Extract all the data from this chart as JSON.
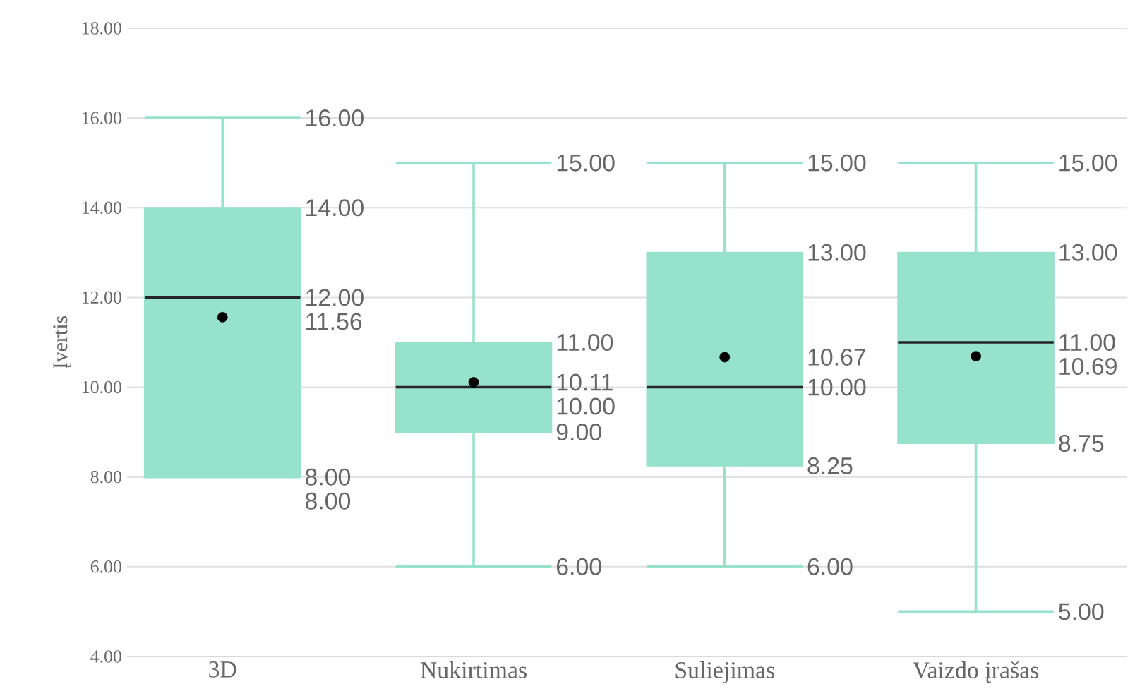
{
  "chart_data": {
    "type": "box",
    "ylabel": "Įvertis",
    "categories": [
      "3D",
      "Nukirtimas",
      "Suliejimas",
      "Vaizdo įrašas"
    ],
    "boxes": [
      {
        "low": 8,
        "q1": 8,
        "median": 12,
        "q3": 14,
        "high": 16,
        "mean": 11.56
      },
      {
        "low": 6,
        "q1": 9,
        "median": 10,
        "q3": 11,
        "high": 15,
        "mean": 10.11
      },
      {
        "low": 6,
        "q1": 8.25,
        "median": 10,
        "q3": 13,
        "high": 15,
        "mean": 10.67
      },
      {
        "low": 5,
        "q1": 8.75,
        "median": 11,
        "q3": 13,
        "high": 15,
        "mean": 10.69
      }
    ],
    "color": "#96e2cb",
    "ylim": [
      4,
      18
    ],
    "yticks": [
      {
        "value": 4,
        "label": "4.00"
      },
      {
        "value": 6,
        "label": "6.00"
      },
      {
        "value": 8,
        "label": "8.00"
      },
      {
        "value": 10,
        "label": "10.00"
      },
      {
        "value": 12,
        "label": "12.00"
      },
      {
        "value": 14,
        "label": "14.00"
      },
      {
        "value": 16,
        "label": "16.00"
      },
      {
        "value": 18,
        "label": "18.00"
      }
    ],
    "grid": "y",
    "annotations": [
      "16.00",
      "14.00",
      "12.00",
      "11.56",
      "8.00",
      "8.00",
      "15.00",
      "11.00",
      "10.11",
      "10.00",
      "9.00",
      "6.00",
      "15.00",
      "13.00",
      "10.67",
      "10.00",
      "8.25",
      "6.00",
      "15.00",
      "13.00",
      "11.00",
      "10.69",
      "8.75",
      "5.00"
    ]
  }
}
